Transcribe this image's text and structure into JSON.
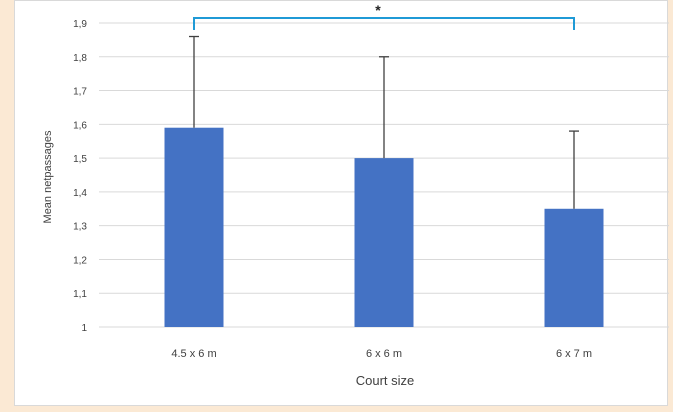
{
  "chart_data": {
    "type": "bar",
    "title": "",
    "xlabel": "Court size",
    "ylabel": "Mean netpassages",
    "categories": [
      "4.5 x 6 m",
      "6 x 6 m",
      "6 x 7 m"
    ],
    "series": [
      {
        "values": [
          1.59,
          1.5,
          1.35
        ],
        "error_upper": [
          0.27,
          0.3,
          0.23
        ]
      }
    ],
    "ylim": [
      1,
      1.9
    ],
    "yticks": [
      "1",
      "1,1",
      "1,2",
      "1,3",
      "1,4",
      "1,5",
      "1,6",
      "1,7",
      "1,8",
      "1,9"
    ],
    "grid": true,
    "significance": {
      "from_category": "4.5 x 6 m",
      "to_category": "6 x 7 m",
      "symbol": "*"
    },
    "colors": {
      "bar": "#4472c4",
      "error_bar": "#404040",
      "gridline": "#d9d9d9",
      "significance_bracket": "#1f9ad6",
      "axis_text": "#404040",
      "background": "#fbe9d4",
      "plot_background": "#ffffff"
    }
  }
}
